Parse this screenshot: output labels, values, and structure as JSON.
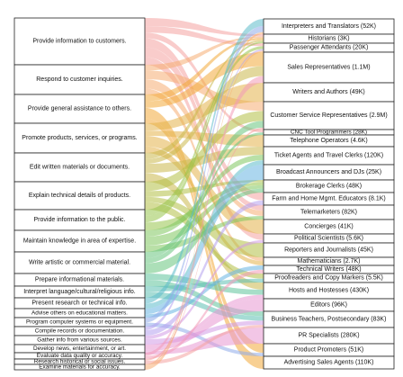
{
  "tasks": [
    "Provide information to customers.",
    "Respond to customer inquiries.",
    "Provide general assistance to others.",
    "Promote products, services, or programs.",
    "Edit written materials or documents.",
    "Explain technical details of products.",
    "Provide information to the public.",
    "Maintain knowledge in area of expertise.",
    "Write artistic or commercial material.",
    "Prepare informational materials.",
    "Interpret language/cultural/religious info.",
    "Present research or technical info.",
    "Advise others on educational matters.",
    "Program computer systems or equipment.",
    "Compile records or documentation.",
    "Gather info from various sources.",
    "Develop news, entertainment, or art.",
    "Evaluate data quality or accuracy.",
    "Research historical or social issues.",
    "Examine materials for accuracy."
  ],
  "occupations": [
    "Interpreters and Translators (52K)",
    "Historians (3K)",
    "Passenger Attendants (20K)",
    "Sales Representatives (1.1M)",
    "Writers and Authors (49K)",
    "Customer Service Representatives (2.9M)",
    "CNC Tool Programmers (28K)",
    "Telephone Operators (4.6K)",
    "Ticket Agents and Travel Clerks (120K)",
    "Broadcast Announcers and DJs (25K)",
    "Brokerage Clerks (48K)",
    "Farm and Home Mgmt. Educators (8.1K)",
    "Telemarketers (82K)",
    "Concierges (41K)",
    "Political Scientists (5.6K)",
    "Reporters and Journalists (45K)",
    "Mathematicians (2.7K)",
    "Technical Writers (48K)",
    "Proofreaders and Copy Markers (5.5K)",
    "Hosts and Hostesses (430K)",
    "Editors (96K)",
    "Business Teachers, Postsecondary (83K)",
    "PR Specialists (280K)",
    "Product Promoters (51K)",
    "Advertising Sales Agents (110K)"
  ],
  "colors": [
    "#f4a3a0",
    "#f6ad72",
    "#f2a93b",
    "#e3b34a",
    "#cbb84c",
    "#b3c046",
    "#97c44c",
    "#7fc65f",
    "#68c47d",
    "#5ec39a",
    "#5cbfb3",
    "#5cbccb",
    "#67b5e2",
    "#8fabea",
    "#b4a1ee",
    "#d29ae6",
    "#e897d2",
    "#f29bb8"
  ]
}
